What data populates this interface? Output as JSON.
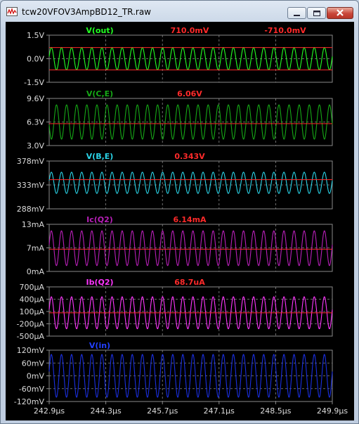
{
  "window": {
    "title": "tcw20VFOV3AmpBD12_TR.raw",
    "buttons": {
      "minimize": "minimize",
      "maximize": "maximize",
      "close": "close"
    }
  },
  "colors": {
    "background": "#000000",
    "grid": "#8a8a8a",
    "cursor": "#ff2a2a",
    "label": "#dcdcdc"
  },
  "x_axis": {
    "ticks": [
      "242.9µs",
      "244.3µs",
      "245.7µs",
      "247.1µs",
      "248.5µs",
      "249.9µs"
    ],
    "range": [
      242.9,
      249.9
    ],
    "unit": "µs"
  },
  "panes": [
    {
      "trace_name": "V(out)",
      "cursor1": "710.0mV",
      "cursor2": "-710.0mV",
      "ticks": [
        "1.5V",
        "0.0V",
        "-1.5V"
      ],
      "ylim": [
        -1.5,
        1.5
      ],
      "center": 0,
      "amplitude": 0.71,
      "cycles": 28,
      "phase": 0.2,
      "color": "#22ff22",
      "name_color": "#22ff22",
      "cursor_levels": [
        0.71,
        -0.71
      ]
    },
    {
      "trace_name": "V(C,E)",
      "cursor1": "6.06V",
      "cursor2": "",
      "ticks": [
        "9.6V",
        "6.3V",
        "3.0V"
      ],
      "ylim": [
        3.0,
        9.6
      ],
      "center": 6.3,
      "amplitude": 2.4,
      "cycles": 28,
      "phase": 3.3,
      "color": "#16a816",
      "name_color": "#16a816",
      "cursor_levels": [
        6.06
      ]
    },
    {
      "trace_name": "V(B,E)",
      "cursor1": "0.343V",
      "cursor2": "",
      "ticks": [
        "378mV",
        "333mV",
        "288mV"
      ],
      "ylim": [
        288,
        378
      ],
      "center": 337,
      "amplitude": 20,
      "cycles": 28,
      "phase": 0.2,
      "color": "#2ad4e8",
      "name_color": "#2ad4e8",
      "cursor_levels": [
        343
      ]
    },
    {
      "trace_name": "Ic(Q2)",
      "cursor1": "6.14mA",
      "cursor2": "",
      "ticks": [
        "13mA",
        "7mA",
        "0mA"
      ],
      "ylim": [
        0,
        13
      ],
      "center": 6.4,
      "amplitude": 4.8,
      "cycles": 28,
      "phase": 0.2,
      "color": "#b81fb8",
      "name_color": "#b81fb8",
      "cursor_levels": [
        6.14
      ]
    },
    {
      "trace_name": "Ib(Q2)",
      "cursor1": "68.7uA",
      "cursor2": "",
      "ticks": [
        "700µA",
        "400µA",
        "100µA",
        "-200µA",
        "-500µA"
      ],
      "ylim": [
        -500,
        700
      ],
      "center": 68.7,
      "amplitude": 390,
      "cycles": 28,
      "phase": 0.2,
      "color": "#ff35ff",
      "name_color": "#ff35ff",
      "cursor_levels": [
        68.7
      ]
    },
    {
      "trace_name": "V(in)",
      "cursor1": "",
      "cursor2": "",
      "ticks": [
        "120mV",
        "60mV",
        "0mV",
        "-60mV",
        "-120mV"
      ],
      "ylim": [
        -120,
        120
      ],
      "center": 0,
      "amplitude": 100,
      "cycles": 28,
      "phase": 0.2,
      "color": "#1a2fe0",
      "name_color": "#2340ff",
      "cursor_levels": []
    }
  ]
}
